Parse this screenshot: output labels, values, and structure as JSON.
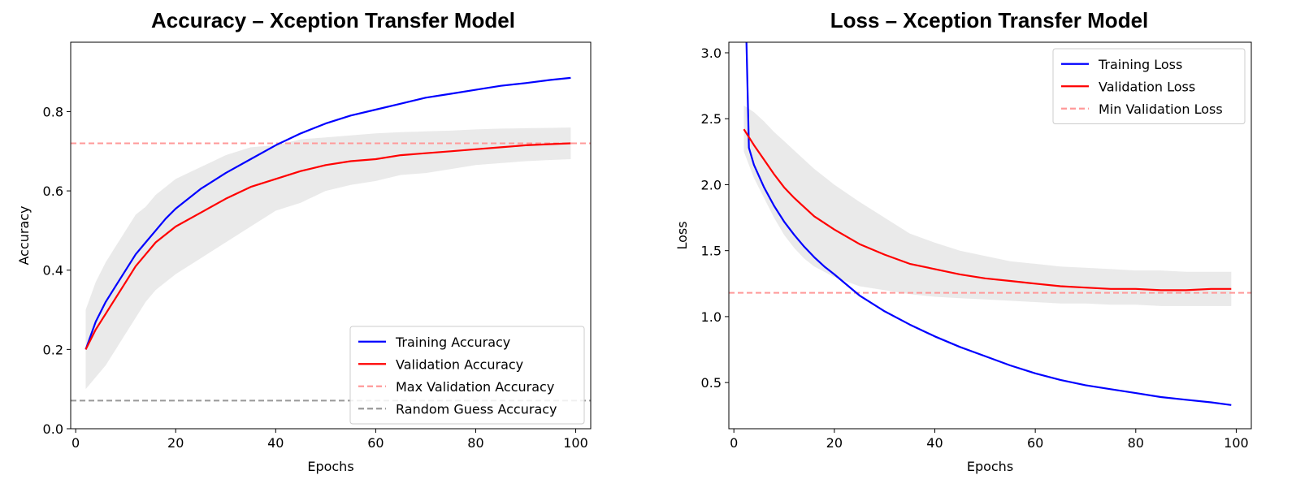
{
  "chart_data": [
    {
      "type": "line",
      "title": "Accuracy – Xception Transfer Model",
      "xlabel": "Epochs",
      "ylabel": "Accuracy",
      "xlim": [
        -1,
        103
      ],
      "ylim": [
        0.0,
        0.975
      ],
      "xticks": [
        0,
        20,
        40,
        60,
        80,
        100
      ],
      "xtick_labels": [
        "0",
        "20",
        "40",
        "60",
        "80",
        "100"
      ],
      "yticks": [
        0.0,
        0.2,
        0.4,
        0.6,
        0.8
      ],
      "ytick_labels": [
        "0.0",
        "0.2",
        "0.4",
        "0.6",
        "0.8"
      ],
      "grid": false,
      "legend_position": "lower right",
      "series": [
        {
          "name": "Training Accuracy",
          "color": "#0000ff",
          "x": [
            2,
            4,
            6,
            8,
            10,
            12,
            14,
            16,
            18,
            20,
            25,
            30,
            35,
            40,
            45,
            50,
            55,
            60,
            65,
            70,
            75,
            80,
            85,
            90,
            95,
            99
          ],
          "y": [
            0.2,
            0.27,
            0.32,
            0.36,
            0.4,
            0.44,
            0.47,
            0.5,
            0.53,
            0.555,
            0.605,
            0.645,
            0.68,
            0.715,
            0.745,
            0.77,
            0.79,
            0.805,
            0.82,
            0.835,
            0.845,
            0.855,
            0.865,
            0.872,
            0.88,
            0.885
          ]
        },
        {
          "name": "Validation Accuracy",
          "color": "#ff0000",
          "x": [
            2,
            4,
            6,
            8,
            10,
            12,
            14,
            16,
            18,
            20,
            25,
            30,
            35,
            40,
            45,
            50,
            55,
            60,
            65,
            70,
            75,
            80,
            85,
            90,
            95,
            99
          ],
          "y": [
            0.2,
            0.25,
            0.29,
            0.33,
            0.37,
            0.41,
            0.44,
            0.47,
            0.49,
            0.51,
            0.545,
            0.58,
            0.61,
            0.63,
            0.65,
            0.665,
            0.675,
            0.68,
            0.69,
            0.695,
            0.7,
            0.705,
            0.71,
            0.715,
            0.718,
            0.72
          ],
          "band_lower": [
            0.1,
            0.13,
            0.16,
            0.2,
            0.24,
            0.28,
            0.32,
            0.35,
            0.37,
            0.39,
            0.43,
            0.47,
            0.51,
            0.55,
            0.57,
            0.6,
            0.615,
            0.625,
            0.64,
            0.645,
            0.655,
            0.665,
            0.67,
            0.675,
            0.678,
            0.68
          ],
          "band_upper": [
            0.3,
            0.37,
            0.42,
            0.46,
            0.5,
            0.54,
            0.56,
            0.59,
            0.61,
            0.63,
            0.66,
            0.69,
            0.71,
            0.715,
            0.73,
            0.735,
            0.74,
            0.745,
            0.748,
            0.75,
            0.752,
            0.755,
            0.757,
            0.758,
            0.759,
            0.76
          ]
        }
      ],
      "hlines": [
        {
          "name": "Max Validation Accuracy",
          "y": 0.72,
          "color": "#ff9999"
        },
        {
          "name": "Random Guess Accuracy",
          "y": 0.071,
          "color": "#999999"
        }
      ]
    },
    {
      "type": "line",
      "title": "Loss – Xception Transfer Model",
      "xlabel": "Epochs",
      "ylabel": "Loss",
      "xlim": [
        -1,
        103
      ],
      "ylim": [
        0.15,
        3.08
      ],
      "xticks": [
        0,
        20,
        40,
        60,
        80,
        100
      ],
      "xtick_labels": [
        "0",
        "20",
        "40",
        "60",
        "80",
        "100"
      ],
      "yticks": [
        0.5,
        1.0,
        1.5,
        2.0,
        2.5,
        3.0
      ],
      "ytick_labels": [
        "0.5",
        "1.0",
        "1.5",
        "2.0",
        "2.5",
        "3.0"
      ],
      "grid": false,
      "legend_position": "upper right",
      "series": [
        {
          "name": "Training Loss",
          "color": "#0000ff",
          "x": [
            2.5,
            2.8,
            3,
            4,
            6,
            8,
            10,
            12,
            14,
            16,
            18,
            20,
            25,
            30,
            35,
            40,
            45,
            50,
            55,
            60,
            65,
            70,
            75,
            80,
            85,
            90,
            95,
            99
          ],
          "y": [
            3.1,
            2.6,
            2.28,
            2.15,
            1.98,
            1.84,
            1.72,
            1.62,
            1.53,
            1.45,
            1.38,
            1.32,
            1.16,
            1.04,
            0.94,
            0.85,
            0.77,
            0.7,
            0.63,
            0.57,
            0.52,
            0.48,
            0.45,
            0.42,
            0.39,
            0.37,
            0.35,
            0.33
          ]
        },
        {
          "name": "Validation Loss",
          "color": "#ff0000",
          "x": [
            2,
            4,
            6,
            8,
            10,
            12,
            14,
            16,
            18,
            20,
            25,
            30,
            35,
            40,
            45,
            50,
            55,
            60,
            65,
            70,
            75,
            80,
            85,
            90,
            95,
            99
          ],
          "y": [
            2.42,
            2.3,
            2.19,
            2.08,
            1.98,
            1.9,
            1.83,
            1.76,
            1.71,
            1.66,
            1.55,
            1.47,
            1.4,
            1.36,
            1.32,
            1.29,
            1.27,
            1.25,
            1.23,
            1.22,
            1.21,
            1.21,
            1.2,
            1.2,
            1.21,
            1.21
          ],
          "band_lower": [
            2.25,
            2.05,
            1.9,
            1.75,
            1.62,
            1.52,
            1.44,
            1.38,
            1.34,
            1.3,
            1.23,
            1.2,
            1.17,
            1.15,
            1.14,
            1.13,
            1.12,
            1.11,
            1.1,
            1.1,
            1.09,
            1.09,
            1.08,
            1.08,
            1.08,
            1.08
          ],
          "band_upper": [
            2.6,
            2.55,
            2.48,
            2.4,
            2.33,
            2.26,
            2.19,
            2.12,
            2.06,
            2.0,
            1.87,
            1.75,
            1.63,
            1.56,
            1.5,
            1.46,
            1.42,
            1.4,
            1.38,
            1.37,
            1.36,
            1.35,
            1.35,
            1.34,
            1.34,
            1.34
          ]
        }
      ],
      "hlines": [
        {
          "name": "Min Validation Loss",
          "y": 1.18,
          "color": "#ff9999"
        }
      ]
    }
  ]
}
